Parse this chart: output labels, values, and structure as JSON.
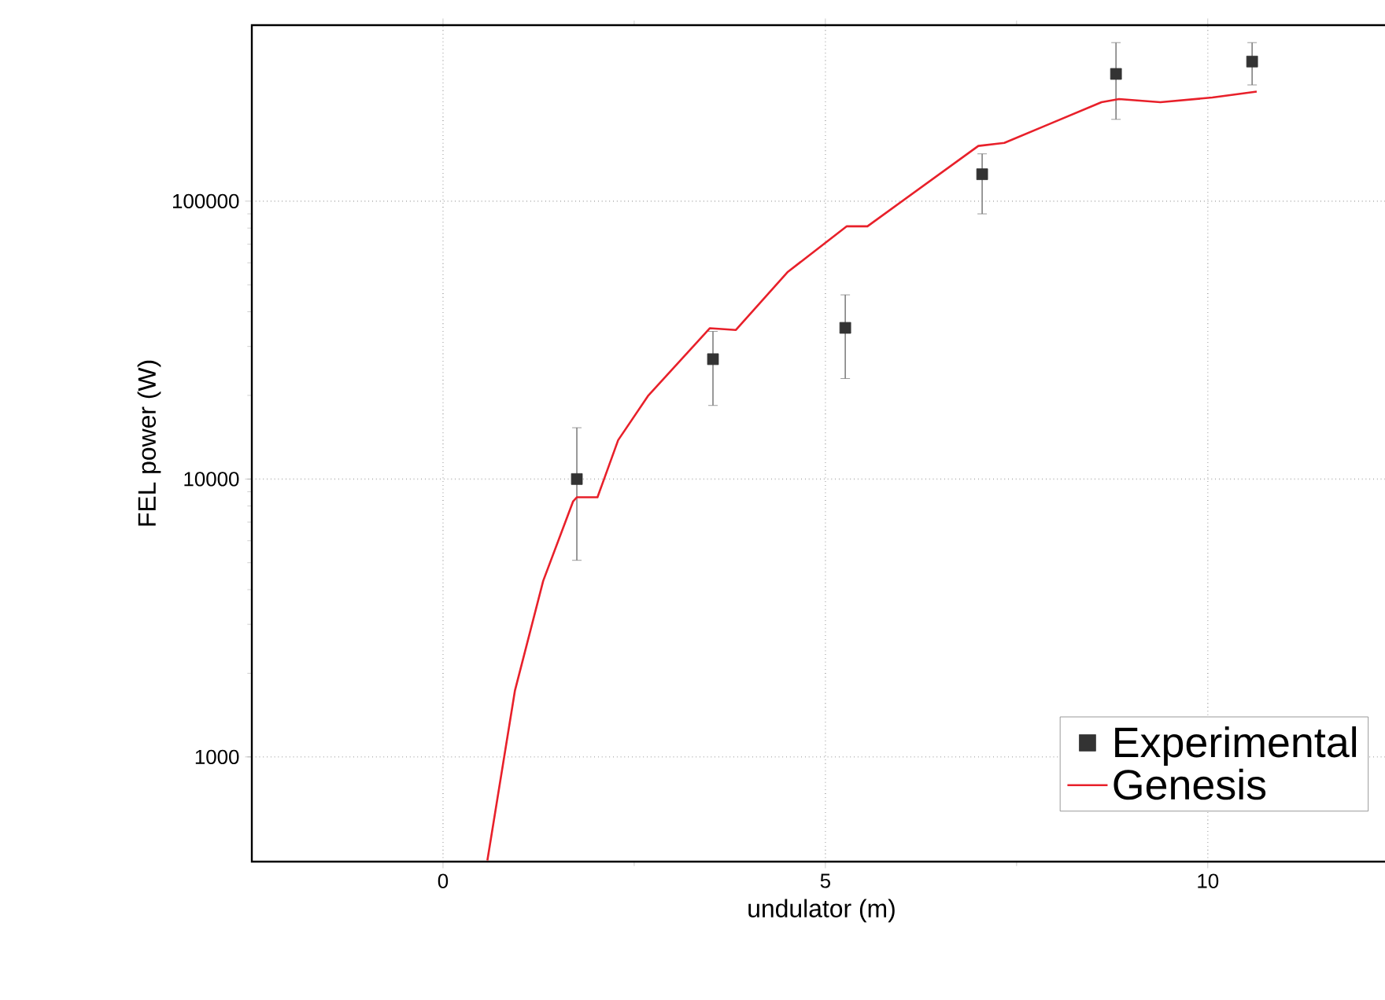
{
  "chart_data": {
    "type": "scatter",
    "xlabel": "undulator (m)",
    "ylabel": "FEL power (W)",
    "log": "y",
    "grid": true,
    "legend": "bottom right",
    "xlim": [
      -2.5,
      12.4
    ],
    "ylim": [
      420,
      430000
    ],
    "xticks": [
      0,
      5,
      10
    ],
    "yticks": [
      1000,
      10000,
      100000
    ],
    "series": [
      {
        "name": "Experimental",
        "marker": "square",
        "color": "#333333",
        "x": [
          1.75,
          3.53,
          5.26,
          7.05,
          8.8,
          10.58
        ],
        "values": [
          10000,
          27000,
          35000,
          125000,
          287000,
          318000
        ],
        "errors": [
          [
            5100,
            15300
          ],
          [
            18400,
            34000
          ],
          [
            23000,
            46000
          ],
          [
            90000,
            148000
          ],
          [
            197000,
            372000
          ],
          [
            262000,
            372000
          ]
        ]
      },
      {
        "name": "Genesis",
        "type": "line",
        "color": "#e8202a",
        "x": [
          0.58,
          0.94,
          1.31,
          1.7,
          1.75,
          2.02,
          2.29,
          2.68,
          3.49,
          3.83,
          4.51,
          5.28,
          5.55,
          7.0,
          7.34,
          7.92,
          8.61,
          8.84,
          9.38,
          10.06,
          10.64
        ],
        "values": [
          424,
          1730,
          4300,
          8300,
          8600,
          8600,
          13800,
          19900,
          34900,
          34400,
          55700,
          81200,
          81200,
          158000,
          162000,
          189000,
          227000,
          233000,
          227000,
          236000,
          248000
        ]
      }
    ]
  }
}
